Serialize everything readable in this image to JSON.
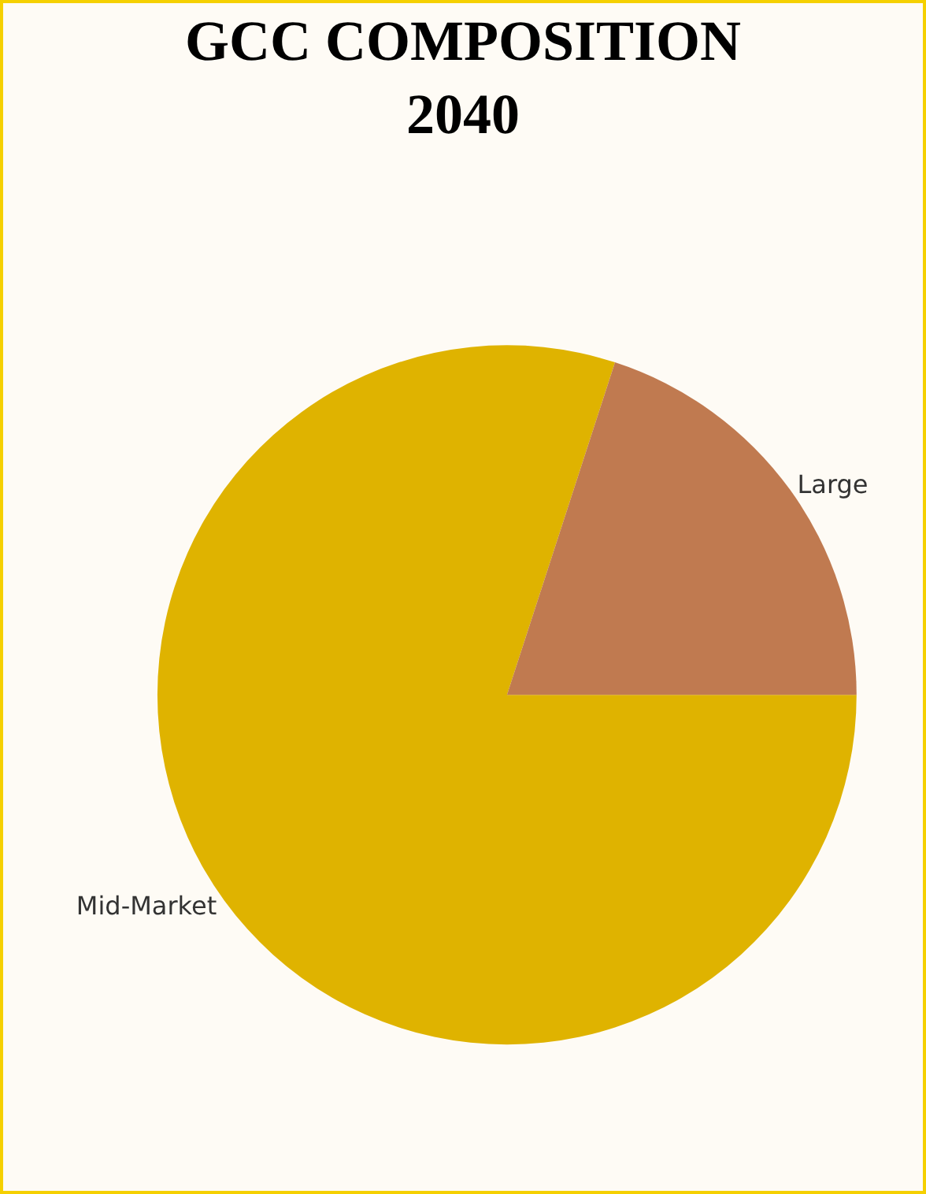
{
  "chart_data": {
    "type": "pie",
    "title": "GCC COMPOSITION\n2040",
    "categories": [
      "Mid-Market",
      "Large"
    ],
    "values": [
      80,
      20
    ],
    "colors": [
      "#dfb300",
      "#c07a50"
    ]
  }
}
